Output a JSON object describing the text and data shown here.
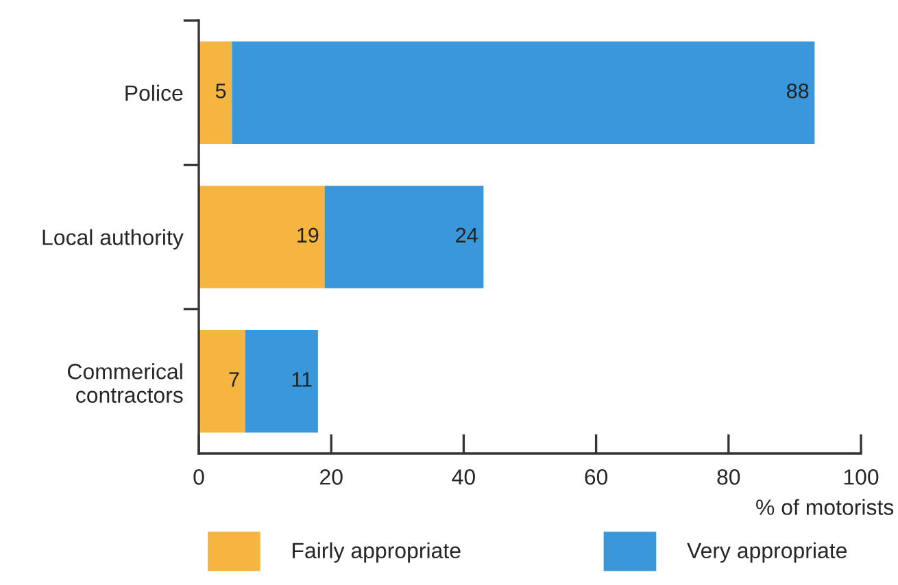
{
  "chart_data": {
    "type": "bar",
    "orientation": "horizontal",
    "stacked": true,
    "categories": [
      "Police",
      "Local authority",
      "Commerical\ncontractors"
    ],
    "series": [
      {
        "name": "Fairly appropriate",
        "color": "#f6b440",
        "values": [
          5,
          19,
          7
        ]
      },
      {
        "name": "Very appropriate",
        "color": "#3a98da",
        "values": [
          88,
          24,
          11
        ]
      }
    ],
    "xlim": [
      0,
      100
    ],
    "xticks": [
      0,
      20,
      40,
      60,
      80,
      100
    ],
    "xlabel": "% of motorists",
    "data_labels": true,
    "legend": "bottom"
  }
}
